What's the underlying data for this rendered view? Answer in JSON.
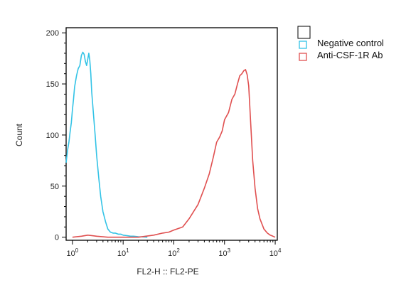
{
  "chart_data": {
    "type": "line",
    "title": "",
    "xlabel": "FL2-H :: FL2-PE",
    "ylabel": "Count",
    "x_scale": "log",
    "xlim": [
      0.75,
      11000
    ],
    "ylim": [
      -3,
      205
    ],
    "x_ticks": [
      {
        "value": 1,
        "base": "10",
        "exp": "0"
      },
      {
        "value": 10,
        "base": "10",
        "exp": "1"
      },
      {
        "value": 100,
        "base": "10",
        "exp": "2"
      },
      {
        "value": 1000,
        "base": "10",
        "exp": "3"
      },
      {
        "value": 10000,
        "base": "10",
        "exp": "4"
      }
    ],
    "y_ticks": [
      0,
      50,
      100,
      150,
      200
    ],
    "grid": false,
    "legend_position": "outside-top-right",
    "series": [
      {
        "name": "Negative control",
        "color": "#33c3e6",
        "x": [
          0.75,
          0.8,
          0.85,
          0.9,
          0.95,
          1.0,
          1.05,
          1.1,
          1.2,
          1.3,
          1.4,
          1.5,
          1.6,
          1.7,
          1.8,
          1.9,
          2.0,
          2.1,
          2.2,
          2.3,
          2.4,
          2.6,
          2.8,
          3.0,
          3.3,
          3.6,
          4.0,
          4.5,
          5.0,
          5.6,
          6.3,
          7.0,
          8.0,
          9.0,
          10.0,
          12,
          14,
          16,
          20,
          25,
          30
        ],
        "y": [
          73,
          85,
          93,
          103,
          112,
          125,
          135,
          147,
          158,
          165,
          168,
          178,
          181,
          179,
          172,
          168,
          174,
          180,
          173,
          160,
          142,
          120,
          100,
          80,
          58,
          40,
          25,
          15,
          8,
          5,
          4,
          4,
          3,
          3,
          2,
          1.5,
          1,
          1,
          0.5,
          0.3,
          0
        ]
      },
      {
        "name": "Anti-CSF-1R Ab",
        "color": "#e05050",
        "x": [
          1,
          1.5,
          2,
          3,
          5,
          10,
          20,
          40,
          60,
          80,
          100,
          150,
          200,
          300,
          400,
          500,
          600,
          700,
          800,
          900,
          1000,
          1200,
          1400,
          1600,
          1800,
          2000,
          2200,
          2400,
          2600,
          2800,
          3000,
          3300,
          3600,
          4000,
          4500,
          5000,
          6000,
          7000,
          8000,
          9000,
          10000
        ],
        "y": [
          0,
          1,
          2,
          1,
          0,
          0,
          0,
          2,
          4,
          5,
          7,
          10,
          18,
          32,
          48,
          62,
          78,
          93,
          98,
          104,
          115,
          122,
          135,
          140,
          150,
          158,
          160,
          163,
          164,
          159,
          148,
          110,
          75,
          48,
          28,
          18,
          8,
          4,
          2,
          1,
          0
        ]
      }
    ]
  },
  "legend": {
    "items": [
      {
        "label": "Negative control",
        "color": "#33c3e6"
      },
      {
        "label": "Anti-CSF-1R Ab",
        "color": "#e05050"
      }
    ]
  }
}
